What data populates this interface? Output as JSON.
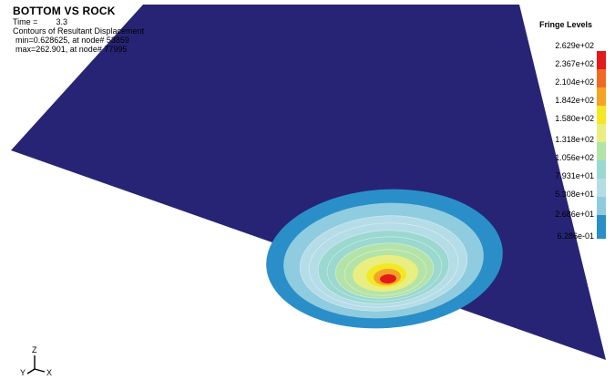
{
  "header": {
    "title": "BOTTOM VS ROCK",
    "time_label": "Time =",
    "time_value": "3.3",
    "contours_label": "Contours of Resultant Displacement",
    "min_line": "min=0.628625, at node# 53859",
    "max_line": "max=262.901, at node# 77995"
  },
  "legend": {
    "title": "Fringe Levels",
    "levels": [
      "2.629e+02",
      "2.367e+02",
      "2.104e+02",
      "1.842e+02",
      "1.580e+02",
      "1.318e+02",
      "1.056e+02",
      "7.931e+01",
      "5.308e+01",
      "2.686e+01",
      "6.286e-01"
    ],
    "colors": [
      "#e31a1c",
      "#f06a24",
      "#f5a325",
      "#f4e825",
      "#e8ef80",
      "#b4e3a8",
      "#9ad8d0",
      "#b5dde8",
      "#90ccdf",
      "#2a8fc8",
      "#272476"
    ]
  },
  "model": {
    "plate_color": "#272476"
  },
  "triad": {
    "z": "Z",
    "y": "Y",
    "x": "X"
  }
}
